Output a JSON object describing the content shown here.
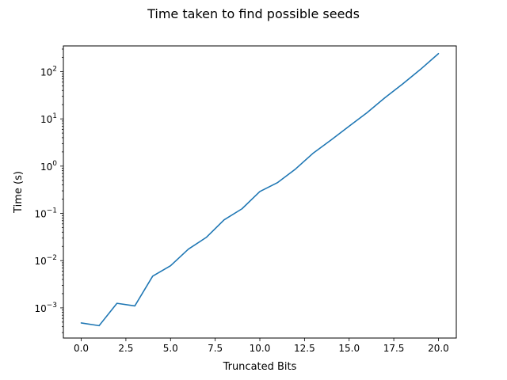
{
  "chart_data": {
    "type": "line",
    "title": "Time taken to find possible seeds",
    "xlabel": "Truncated Bits",
    "ylabel": "Time (s)",
    "xlim": [
      -1.0,
      21.0
    ],
    "ylim": [
      0.00023,
      350
    ],
    "yscale": "log",
    "grid": false,
    "xticks": [
      {
        "value": 0,
        "label": "0.0"
      },
      {
        "value": 2.5,
        "label": "2.5"
      },
      {
        "value": 5,
        "label": "5.0"
      },
      {
        "value": 7.5,
        "label": "7.5"
      },
      {
        "value": 10,
        "label": "10.0"
      },
      {
        "value": 12.5,
        "label": "12.5"
      },
      {
        "value": 15,
        "label": "15.0"
      },
      {
        "value": 17.5,
        "label": "17.5"
      },
      {
        "value": 20,
        "label": "20.0"
      }
    ],
    "yticks": [
      {
        "value": 0.001,
        "base": "10",
        "exp": "−3"
      },
      {
        "value": 0.01,
        "base": "10",
        "exp": "−2"
      },
      {
        "value": 0.1,
        "base": "10",
        "exp": "−1"
      },
      {
        "value": 1,
        "base": "10",
        "exp": "0"
      },
      {
        "value": 10,
        "base": "10",
        "exp": "1"
      },
      {
        "value": 100,
        "base": "10",
        "exp": "2"
      }
    ],
    "series": [
      {
        "name": "time",
        "color": "#1f77b4",
        "x": [
          0,
          1,
          2,
          3,
          4,
          5,
          6,
          7,
          8,
          9,
          10,
          11,
          12,
          13,
          14,
          15,
          16,
          17,
          18,
          19,
          20
        ],
        "y": [
          0.00048,
          0.00042,
          0.00125,
          0.0011,
          0.0047,
          0.0078,
          0.0175,
          0.031,
          0.073,
          0.125,
          0.29,
          0.45,
          0.87,
          1.9,
          3.6,
          7.0,
          13.5,
          28,
          55,
          112,
          240
        ]
      }
    ]
  }
}
